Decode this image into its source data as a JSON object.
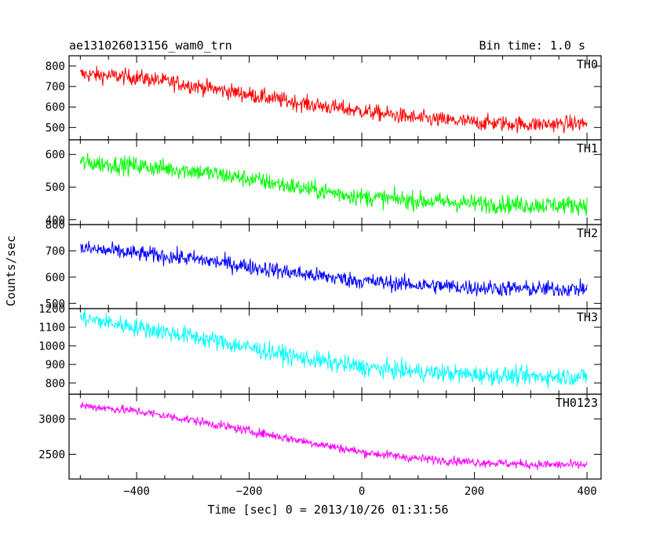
{
  "chart_data": {
    "type": "line",
    "title_left": "ae131026013156_wam0_trn",
    "title_right": "Bin time: 1.0 s",
    "xlabel": "Time [sec] 0 = 2013/10/26 01:31:56",
    "ylabel": "Counts/sec",
    "xlim": [
      -520,
      425
    ],
    "xticks": [
      -400,
      -200,
      0,
      200,
      400
    ],
    "panels": [
      {
        "name": "TH0",
        "color": "#ff0000",
        "ylim": [
          440,
          850
        ],
        "yticks": [
          500,
          600,
          700,
          800
        ],
        "x": [
          -500,
          -400,
          -300,
          -200,
          -100,
          0,
          100,
          200,
          300,
          400
        ],
        "y": [
          760,
          745,
          705,
          660,
          615,
          580,
          545,
          525,
          515,
          520
        ],
        "noise": 28
      },
      {
        "name": "TH1",
        "color": "#00ff00",
        "ylim": [
          385,
          645
        ],
        "yticks": [
          400,
          500,
          600
        ],
        "x": [
          -500,
          -400,
          -300,
          -200,
          -100,
          0,
          100,
          200,
          300,
          400
        ],
        "y": [
          575,
          565,
          550,
          525,
          495,
          470,
          458,
          450,
          445,
          445
        ],
        "noise": 20
      },
      {
        "name": "TH2",
        "color": "#0000ff",
        "ylim": [
          480,
          800
        ],
        "yticks": [
          500,
          600,
          700,
          800
        ],
        "x": [
          -500,
          -400,
          -300,
          -200,
          -100,
          0,
          100,
          200,
          300,
          400
        ],
        "y": [
          710,
          690,
          670,
          640,
          610,
          585,
          570,
          560,
          555,
          555
        ],
        "noise": 22
      },
      {
        "name": "TH3",
        "color": "#00ffff",
        "ylim": [
          740,
          1200
        ],
        "yticks": [
          800,
          900,
          1000,
          1100,
          1200
        ],
        "x": [
          -500,
          -400,
          -300,
          -200,
          -100,
          0,
          100,
          200,
          300,
          400
        ],
        "y": [
          1150,
          1100,
          1050,
          990,
          930,
          885,
          860,
          845,
          835,
          835
        ],
        "noise": 35
      },
      {
        "name": "TH0123",
        "color": "#ff00ff",
        "ylim": [
          2150,
          3350
        ],
        "yticks": [
          2500,
          3000
        ],
        "x": [
          -500,
          -400,
          -300,
          -200,
          -100,
          0,
          100,
          200,
          300,
          400
        ],
        "y": [
          3190,
          3110,
          2980,
          2830,
          2680,
          2530,
          2440,
          2390,
          2355,
          2350
        ],
        "noise": 45
      }
    ]
  }
}
